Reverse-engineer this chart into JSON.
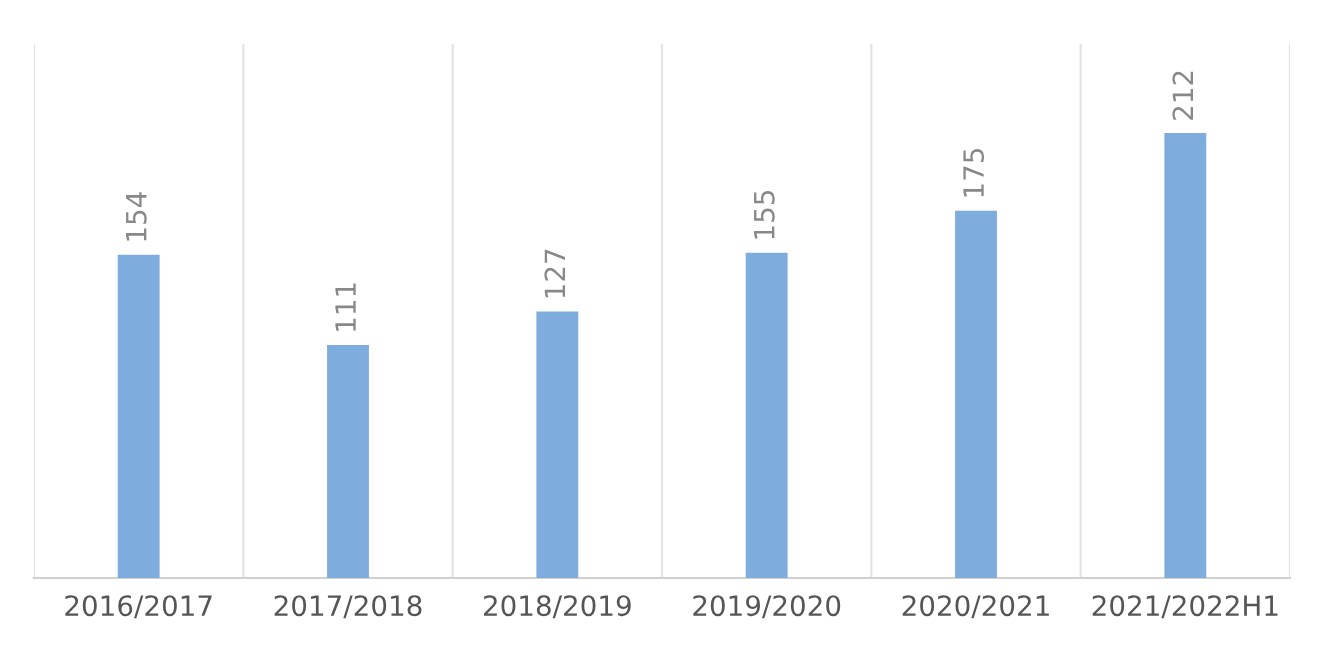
{
  "chart_data": {
    "type": "bar",
    "categories": [
      "2016/2017",
      "2017/2018",
      "2018/2019",
      "2019/2020",
      "2020/2021",
      "2021/2022H1"
    ],
    "values": [
      154,
      111,
      127,
      155,
      175,
      212
    ],
    "color": "#7eaddd",
    "data_labels": true,
    "grid": "x",
    "legend": false
  }
}
